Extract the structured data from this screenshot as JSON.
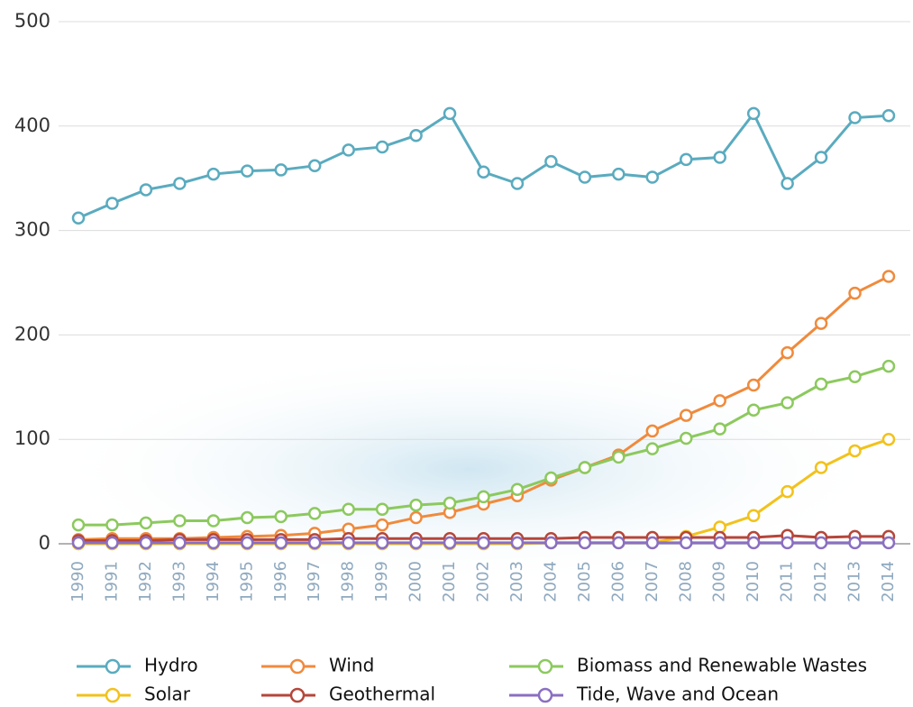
{
  "chart_data": {
    "type": "line",
    "categories": [
      "1990",
      "1991",
      "1992",
      "1993",
      "1994",
      "1995",
      "1996",
      "1997",
      "1998",
      "1999",
      "2000",
      "2001",
      "2002",
      "2003",
      "2004",
      "2005",
      "2006",
      "2007",
      "2008",
      "2009",
      "2010",
      "2011",
      "2012",
      "2013",
      "2014"
    ],
    "series": [
      {
        "name": "Hydro",
        "color": "#5aabbf",
        "values": [
          312,
          326,
          339,
          345,
          354,
          357,
          358,
          362,
          377,
          380,
          391,
          412,
          356,
          345,
          366,
          351,
          354,
          351,
          368,
          370,
          412,
          345,
          370,
          408,
          410
        ]
      },
      {
        "name": "Wind",
        "color": "#f08a3c",
        "values": [
          4,
          5,
          5,
          5,
          6,
          7,
          8,
          10,
          14,
          18,
          25,
          30,
          38,
          46,
          61,
          73,
          85,
          108,
          123,
          137,
          152,
          183,
          211,
          240,
          256
        ]
      },
      {
        "name": "Biomass and Renewable Wastes",
        "color": "#8cc95e",
        "values": [
          18,
          18,
          20,
          22,
          22,
          25,
          26,
          29,
          33,
          33,
          37,
          39,
          45,
          52,
          63,
          73,
          83,
          91,
          101,
          110,
          128,
          135,
          153,
          160,
          170
        ]
      },
      {
        "name": "Solar",
        "color": "#f2c21c",
        "values": [
          0,
          0,
          0,
          0,
          0,
          0,
          0,
          0,
          0,
          0,
          0,
          0,
          0,
          0,
          1,
          1,
          1,
          1,
          7,
          16,
          27,
          50,
          73,
          89,
          100
        ]
      },
      {
        "name": "Geothermal",
        "color": "#b5463a",
        "values": [
          3,
          3,
          3,
          4,
          4,
          4,
          4,
          4,
          5,
          5,
          5,
          5,
          5,
          5,
          5,
          6,
          6,
          6,
          6,
          6,
          6,
          8,
          6,
          7,
          7
        ]
      },
      {
        "name": "Tide, Wave and Ocean",
        "color": "#8a6fc2",
        "values": [
          1,
          1,
          1,
          1,
          1,
          1,
          1,
          1,
          1,
          1,
          1,
          1,
          1,
          1,
          1,
          1,
          1,
          1,
          1,
          1,
          1,
          1,
          1,
          1,
          1
        ]
      }
    ],
    "ylim": [
      0,
      500
    ],
    "yticks": [
      0,
      100,
      200,
      300,
      400,
      500
    ],
    "grid": true
  }
}
